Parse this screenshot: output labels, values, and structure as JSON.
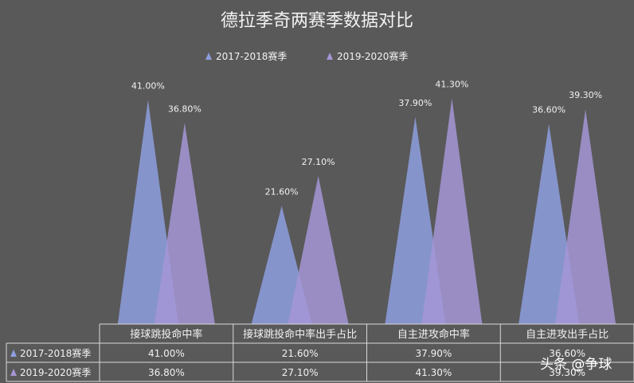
{
  "chart_data": {
    "type": "bar",
    "title": "德拉季奇两赛季数据对比",
    "categories": [
      "接球跳投命中率",
      "接球跳投命中率出手占比",
      "自主进攻命中率",
      "自主进攻出手占比"
    ],
    "series": [
      {
        "name": "2017-2018赛季",
        "values": [
          41.0,
          21.6,
          37.9,
          36.6
        ],
        "labels": [
          "41.00%",
          "21.60%",
          "37.90%",
          "36.60%"
        ],
        "color": "#8e9fe0"
      },
      {
        "name": "2019-2020赛季",
        "values": [
          36.8,
          27.1,
          41.3,
          39.3
        ],
        "labels": [
          "36.80%",
          "27.10%",
          "41.30%",
          "39.30%"
        ],
        "color": "#a596d6"
      }
    ],
    "ylim": [
      0,
      45
    ],
    "grid": false,
    "legend_position": "top",
    "data_table": true
  },
  "watermark": "头条 @争球"
}
